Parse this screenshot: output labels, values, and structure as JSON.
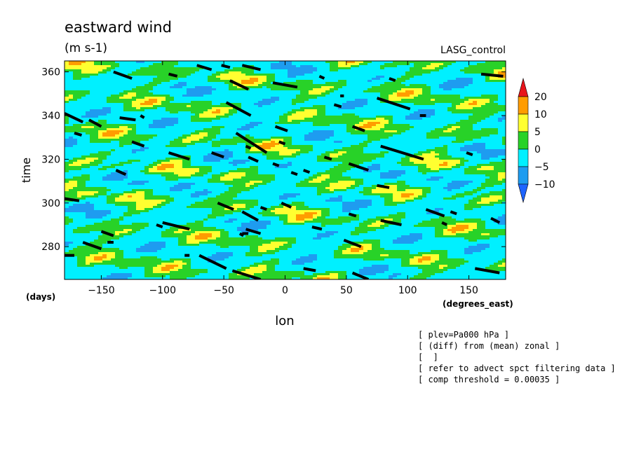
{
  "chart_data": {
    "type": "heatmap",
    "title": "eastward wind",
    "subtitle": "(m s-1)",
    "run_label": "LASG_control",
    "xlabel": "lon",
    "ylabel": "time",
    "x_units": "(degrees_east)",
    "y_units": "(days)",
    "xlim": [
      -180,
      180
    ],
    "ylim": [
      265,
      365
    ],
    "xticks": [
      -150,
      -100,
      -50,
      0,
      50,
      100,
      150
    ],
    "yticks": [
      280,
      300,
      320,
      340,
      360
    ],
    "xtick_labels": [
      "−150",
      "−100",
      "−50",
      "0",
      "50",
      "100",
      "150"
    ],
    "ytick_labels": [
      "280",
      "300",
      "320",
      "340",
      "360"
    ],
    "colorbar": {
      "levels": [
        "20",
        "10",
        "5",
        "0",
        "−5",
        "−10"
      ],
      "colors": [
        "#e8141a",
        "#ff9c00",
        "#ffff30",
        "#28d228",
        "#00f0ff",
        "#1e9cf0",
        "#1e64ff"
      ]
    },
    "overlay_segments": [
      [
        -140,
        360,
        -125,
        357
      ],
      [
        -72,
        363,
        -60,
        361
      ],
      [
        -52,
        363,
        -45,
        362
      ],
      [
        -35,
        363,
        -20,
        361
      ],
      [
        -95,
        359,
        -88,
        358
      ],
      [
        -45,
        356,
        -30,
        352
      ],
      [
        -10,
        355,
        10,
        353
      ],
      [
        28,
        358,
        32,
        357
      ],
      [
        85,
        357,
        90,
        356
      ],
      [
        160,
        359,
        178,
        358
      ],
      [
        -180,
        341,
        -165,
        337
      ],
      [
        -160,
        338,
        -150,
        335
      ],
      [
        -135,
        339,
        -122,
        338
      ],
      [
        -118,
        340,
        -115,
        339
      ],
      [
        -48,
        346,
        -28,
        340
      ],
      [
        45,
        349,
        48,
        349
      ],
      [
        40,
        345,
        46,
        344
      ],
      [
        75,
        348,
        102,
        343
      ],
      [
        110,
        340,
        115,
        340
      ],
      [
        -172,
        332,
        -166,
        331
      ],
      [
        -40,
        332,
        -15,
        323
      ],
      [
        -8,
        335,
        2,
        333
      ],
      [
        -5,
        328,
        0,
        327
      ],
      [
        55,
        335,
        65,
        333
      ],
      [
        -125,
        328,
        -115,
        326
      ],
      [
        -95,
        323,
        -78,
        320
      ],
      [
        -60,
        323,
        -50,
        321
      ],
      [
        -32,
        326,
        -28,
        325
      ],
      [
        -10,
        318,
        -5,
        317
      ],
      [
        32,
        321,
        38,
        320
      ],
      [
        52,
        318,
        68,
        315
      ],
      [
        78,
        326,
        113,
        320
      ],
      [
        148,
        323,
        153,
        322
      ],
      [
        -138,
        315,
        -130,
        313
      ],
      [
        -30,
        321,
        -22,
        319
      ],
      [
        5,
        314,
        10,
        313
      ],
      [
        15,
        315,
        20,
        314
      ],
      [
        75,
        308,
        85,
        307
      ],
      [
        -180,
        302,
        -168,
        301
      ],
      [
        -3,
        300,
        5,
        298
      ],
      [
        -35,
        296,
        -22,
        292
      ],
      [
        -100,
        291,
        -78,
        288
      ],
      [
        -105,
        290,
        -100,
        289
      ],
      [
        -20,
        298,
        -15,
        297
      ],
      [
        -55,
        300,
        -42,
        297
      ],
      [
        52,
        295,
        58,
        294
      ],
      [
        78,
        292,
        95,
        290
      ],
      [
        115,
        297,
        130,
        294
      ],
      [
        135,
        296,
        140,
        295
      ],
      [
        128,
        291,
        132,
        290
      ],
      [
        168,
        293,
        175,
        291
      ],
      [
        -150,
        287,
        -140,
        285
      ],
      [
        -165,
        282,
        -150,
        279
      ],
      [
        -145,
        282,
        -140,
        282
      ],
      [
        -32,
        288,
        -20,
        286
      ],
      [
        -35,
        286,
        -30,
        286
      ],
      [
        -37,
        286,
        -34,
        285
      ],
      [
        22,
        289,
        30,
        288
      ],
      [
        48,
        283,
        62,
        280
      ],
      [
        -70,
        276,
        -48,
        270
      ],
      [
        -43,
        269,
        -20,
        265
      ],
      [
        15,
        270,
        25,
        269
      ],
      [
        55,
        268,
        68,
        265
      ],
      [
        155,
        270,
        175,
        268
      ],
      [
        -180,
        276,
        -172,
        276
      ],
      [
        -82,
        276,
        -78,
        276
      ]
    ],
    "notes": [
      "[ plev=Pa000 hPa ]",
      "[ (diff) from (mean) zonal ]",
      "[  ]",
      "[ refer to advect spct filtering data ]",
      "[ comp threshold = 0.00035 ]"
    ]
  }
}
